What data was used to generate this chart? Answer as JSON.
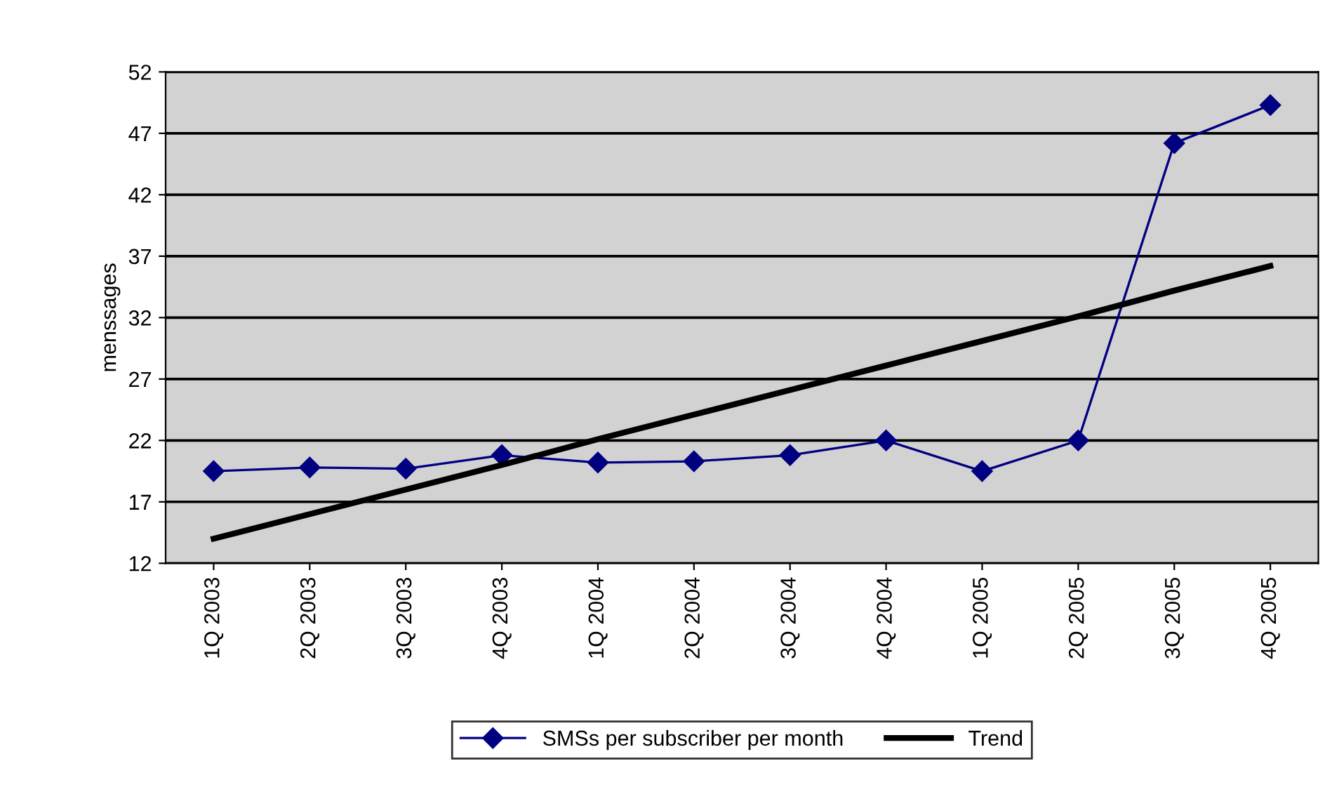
{
  "chart_data": {
    "type": "line",
    "ylabel": "menssages",
    "categories": [
      "1Q 2003",
      "2Q 2003",
      "3Q 2003",
      "4Q 2003",
      "1Q 2004",
      "2Q 2004",
      "3Q 2004",
      "4Q 2004",
      "1Q 2005",
      "2Q 2005",
      "3Q 2005",
      "4Q 2005"
    ],
    "series": [
      {
        "name": "SMSs per subscriber per month",
        "color": "#000080",
        "marker": "diamond",
        "values": [
          19.5,
          19.8,
          19.7,
          20.8,
          20.2,
          20.3,
          20.8,
          22.0,
          19.5,
          22.0,
          46.2,
          49.3
        ]
      },
      {
        "name": "Trend",
        "color": "#000000",
        "marker": "none",
        "values": [
          14.0,
          16.0,
          18.0,
          20.0,
          22.1,
          24.1,
          26.1,
          28.1,
          30.1,
          32.1,
          34.2,
          36.2
        ]
      }
    ],
    "ylim": [
      12,
      52
    ],
    "yticks": [
      12,
      17,
      22,
      27,
      32,
      37,
      42,
      47,
      52
    ],
    "grid": "y",
    "legend": "bottom"
  }
}
